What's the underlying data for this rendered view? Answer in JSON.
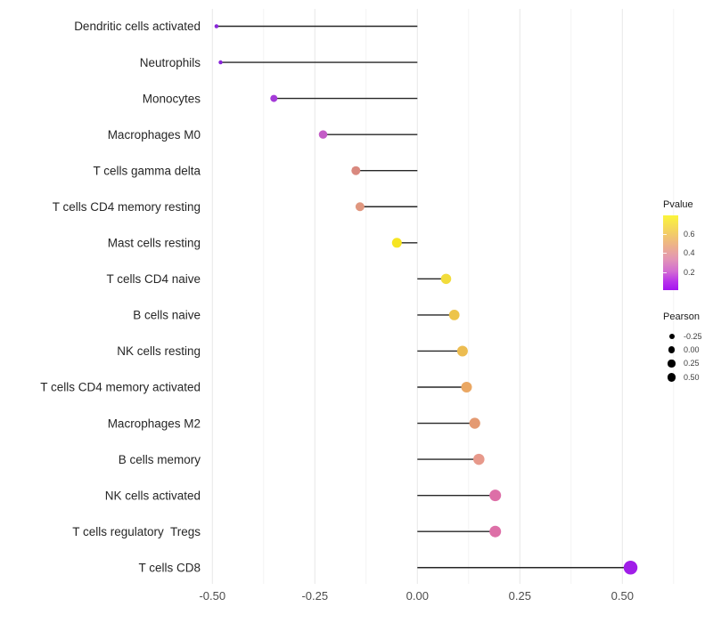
{
  "chart_data": {
    "type": "scatter",
    "variant": "horizontal-lollipop",
    "title": "",
    "xlabel": "",
    "ylabel": "",
    "categories": [
      "Dendritic cells activated",
      "Neutrophils",
      "Monocytes",
      "Macrophages M0",
      "T cells gamma delta",
      "T cells CD4 memory resting",
      "Mast cells resting",
      "T cells CD4 naive",
      "B cells naive",
      "NK cells resting",
      "T cells CD4 memory activated",
      "Macrophages M2",
      "B cells memory",
      "NK cells activated",
      "T cells regulatory  Tregs",
      "T cells CD8"
    ],
    "series": [
      {
        "name": "Pearson",
        "values": [
          -0.49,
          -0.48,
          -0.35,
          -0.23,
          -0.15,
          -0.14,
          -0.05,
          0.07,
          0.09,
          0.11,
          0.12,
          0.14,
          0.15,
          0.19,
          0.19,
          0.52
        ]
      }
    ],
    "points": [
      {
        "category": "Dendritic cells activated",
        "pearson": -0.49,
        "color": "#8926d9",
        "diameter": 4.5
      },
      {
        "category": "Neutrophils",
        "pearson": -0.48,
        "color": "#8926d9",
        "diameter": 4.5
      },
      {
        "category": "Monocytes",
        "pearson": -0.35,
        "color": "#a43ad8",
        "diameter": 8
      },
      {
        "category": "Macrophages M0",
        "pearson": -0.23,
        "color": "#c35cc6",
        "diameter": 9.5
      },
      {
        "category": "T cells gamma delta",
        "pearson": -0.15,
        "color": "#d9897f",
        "diameter": 10
      },
      {
        "category": "T cells CD4 memory resting",
        "pearson": -0.14,
        "color": "#e0977f",
        "diameter": 10
      },
      {
        "category": "Mast cells resting",
        "pearson": -0.05,
        "color": "#f6e522",
        "diameter": 11
      },
      {
        "category": "T cells CD4 naive",
        "pearson": 0.07,
        "color": "#f2dc3b",
        "diameter": 11.5
      },
      {
        "category": "B cells naive",
        "pearson": 0.09,
        "color": "#edc44a",
        "diameter": 11.8
      },
      {
        "category": "NK cells resting",
        "pearson": 0.11,
        "color": "#ecbc50",
        "diameter": 12
      },
      {
        "category": "T cells CD4 memory activated",
        "pearson": 0.12,
        "color": "#eaa763",
        "diameter": 12
      },
      {
        "category": "Macrophages M2",
        "pearson": 0.14,
        "color": "#e49a72",
        "diameter": 12.3
      },
      {
        "category": "B cells memory",
        "pearson": 0.15,
        "color": "#e7998b",
        "diameter": 12.5
      },
      {
        "category": "NK cells activated",
        "pearson": 0.19,
        "color": "#dd6fa7",
        "diameter": 13
      },
      {
        "category": "T cells regulatory  Tregs",
        "pearson": 0.19,
        "color": "#dd6fa7",
        "diameter": 13
      },
      {
        "category": "T cells CD8",
        "pearson": 0.52,
        "color": "#a01ee8",
        "diameter": 15.5
      }
    ],
    "x_axis": {
      "tick_labels": [
        "-0.50",
        "-0.25",
        "0.00",
        "0.25",
        "0.50"
      ],
      "tick_values": [
        -0.5,
        -0.25,
        0,
        0.25,
        0.5
      ],
      "minor_tick_values": [
        -0.375,
        -0.125,
        0.125,
        0.375,
        0.625
      ],
      "range": [
        -0.52,
        0.69
      ],
      "grid": true
    },
    "legend": {
      "pvalue": {
        "title": "Pvalue",
        "ticks": [
          {
            "label": "0.6",
            "pos_pct": 25
          },
          {
            "label": "0.4",
            "pos_pct": 50.5
          },
          {
            "label": "0.2",
            "pos_pct": 76
          }
        ],
        "gradient_top_color": "#fbf53a",
        "gradient_bottom_color": "#a414f0"
      },
      "pearson": {
        "title": "Pearson",
        "dot_color": "#000000",
        "items": [
          {
            "label": "-0.25",
            "diameter": 6
          },
          {
            "label": "0.00",
            "diameter": 7.2
          },
          {
            "label": "0.25",
            "diameter": 8.2
          },
          {
            "label": "0.50",
            "diameter": 9.4
          }
        ]
      }
    },
    "styles": {
      "stem_color": "#262626",
      "category_label_color": "#262626",
      "tick_label_color": "#4d4d4d",
      "grid_major_color": "#e7e7e7",
      "grid_minor_color": "#f3f3f3",
      "background": "#ffffff"
    }
  }
}
